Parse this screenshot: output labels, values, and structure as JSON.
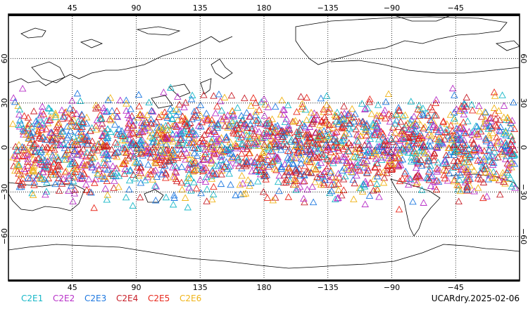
{
  "map": {
    "projection": "cylindrical-equidistant",
    "center_longitude": 180,
    "longitude_range": [
      0,
      360
    ],
    "latitude_range": [
      -90,
      90
    ],
    "gridlines": true,
    "lon_ticks": [
      {
        "lon": 45,
        "label": "45"
      },
      {
        "lon": 90,
        "label": "90"
      },
      {
        "lon": 135,
        "label": "135"
      },
      {
        "lon": 180,
        "label": "180"
      },
      {
        "lon": 225,
        "label": "−135"
      },
      {
        "lon": 270,
        "label": "−90"
      },
      {
        "lon": 315,
        "label": "−45"
      }
    ],
    "lat_ticks": [
      {
        "lat": 60,
        "label": "60"
      },
      {
        "lat": 30,
        "label": "30"
      },
      {
        "lat": 0,
        "label": "0"
      },
      {
        "lat": -30,
        "label": "−30"
      },
      {
        "lat": -60,
        "label": "−60"
      }
    ],
    "observation_band_lat": [
      -45,
      45
    ],
    "marker": "open-triangle"
  },
  "legend": [
    {
      "label": "C2E1",
      "color": "#19b8c8"
    },
    {
      "label": "C2E2",
      "color": "#b830c8"
    },
    {
      "label": "C2E3",
      "color": "#1e78e0"
    },
    {
      "label": "C2E4",
      "color": "#c8202a"
    },
    {
      "label": "C2E5",
      "color": "#e8281c"
    },
    {
      "label": "C2E6",
      "color": "#f0b418"
    }
  ],
  "footer": {
    "label": "UCARdry.2025-02-06"
  }
}
